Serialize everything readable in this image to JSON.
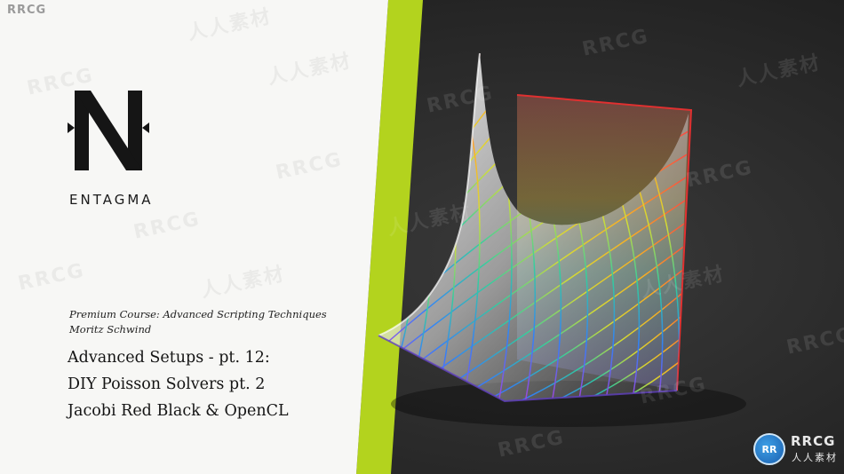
{
  "watermark": {
    "corner": "RRCG",
    "repeat_latin": "RRCG",
    "repeat_cjk": "人人素材",
    "badge_mark": "RR",
    "badge_top": "RRCG",
    "badge_bottom": "人人素材"
  },
  "brand": {
    "name": "ENTAGMA",
    "logo_icon": "entagma-n-logo-icon"
  },
  "course": {
    "title": "Premium Course: Advanced Scripting Techniques",
    "author": "Moritz Schwind"
  },
  "lesson": {
    "line1": "Advanced Setups - pt. 12:",
    "line2": "DIY Poisson Solvers pt. 2",
    "line3": "Jacobi Red Black & OpenCL"
  },
  "colors": {
    "left_panel": "#f7f7f5",
    "accent_stripe": "#b3d31e",
    "dark_background": "#2b2b2b"
  }
}
